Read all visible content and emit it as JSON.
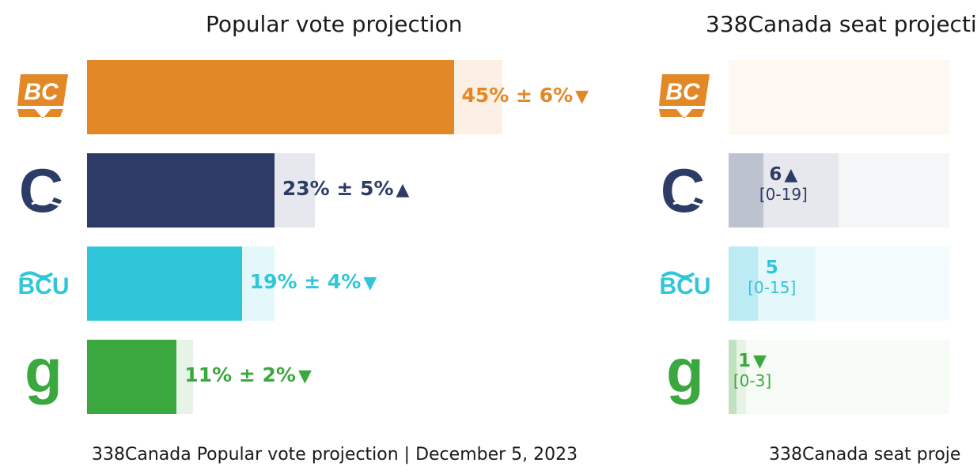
{
  "charts": {
    "popular_vote_title": "Popular vote projection",
    "seat_title": "338Canada seat projecti",
    "popular_vote_footer": "338Canada Popular vote projection | December 5, 2023",
    "seat_footer": "338Canada seat proje"
  },
  "parties": [
    {
      "id": "bc-united-ndp",
      "logo": "BC",
      "logo_icon": "bc-ndp-sunrise-logo",
      "color": "#e38826",
      "light": "#fbf0e3",
      "bg": "#fef8f1"
    },
    {
      "id": "conservative",
      "logo": "C",
      "logo_icon": "conservative-c-mountain-logo",
      "color": "#2c3c66",
      "light": "#e6e8ee",
      "bg": "#f5f6f8"
    },
    {
      "id": "bc-united",
      "logo": "BCU",
      "logo_icon": "bc-united-wave-logo",
      "color": "#30c6d9",
      "light": "#e4f7fa",
      "bg": "#f4fcfd"
    },
    {
      "id": "green",
      "logo": "g",
      "logo_icon": "green-g-logo",
      "color": "#3ba83f",
      "light": "#e7f3e6",
      "bg": "#f6fbf6"
    }
  ],
  "chart_data": [
    {
      "type": "bar",
      "orientation": "horizontal",
      "title": "Popular vote projection",
      "unit": "%",
      "xlim": [
        0,
        50
      ],
      "categories": [
        "BC NDP",
        "BC Conservative",
        "BC United",
        "BC Green"
      ],
      "values": [
        45,
        23,
        19,
        11
      ],
      "margins": [
        6,
        5,
        4,
        2
      ],
      "labels": [
        "45% ± 6%",
        "23% ± 5%",
        "19% ± 4%",
        "11% ± 2%"
      ],
      "trends": [
        "down",
        "up",
        "down",
        "down"
      ],
      "trend_glyphs": [
        "▼",
        "▲",
        "▼",
        "▼"
      ]
    },
    {
      "type": "bar",
      "orientation": "horizontal",
      "title": "338Canada seat projecti",
      "unit": "seats",
      "categories": [
        "BC NDP",
        "BC Conservative",
        "BC United",
        "BC Green"
      ],
      "values": [
        null,
        6,
        5,
        1
      ],
      "ranges": [
        null,
        [
          0,
          19
        ],
        [
          0,
          15
        ],
        [
          0,
          3
        ]
      ],
      "value_labels": [
        "",
        "6",
        "5",
        "1"
      ],
      "range_labels": [
        "",
        "[0-19]",
        "[0-15]",
        "[0-3]"
      ],
      "trends": [
        "",
        "up",
        "",
        "down"
      ],
      "trend_glyphs": [
        "",
        "▲",
        "",
        "▼"
      ]
    }
  ]
}
